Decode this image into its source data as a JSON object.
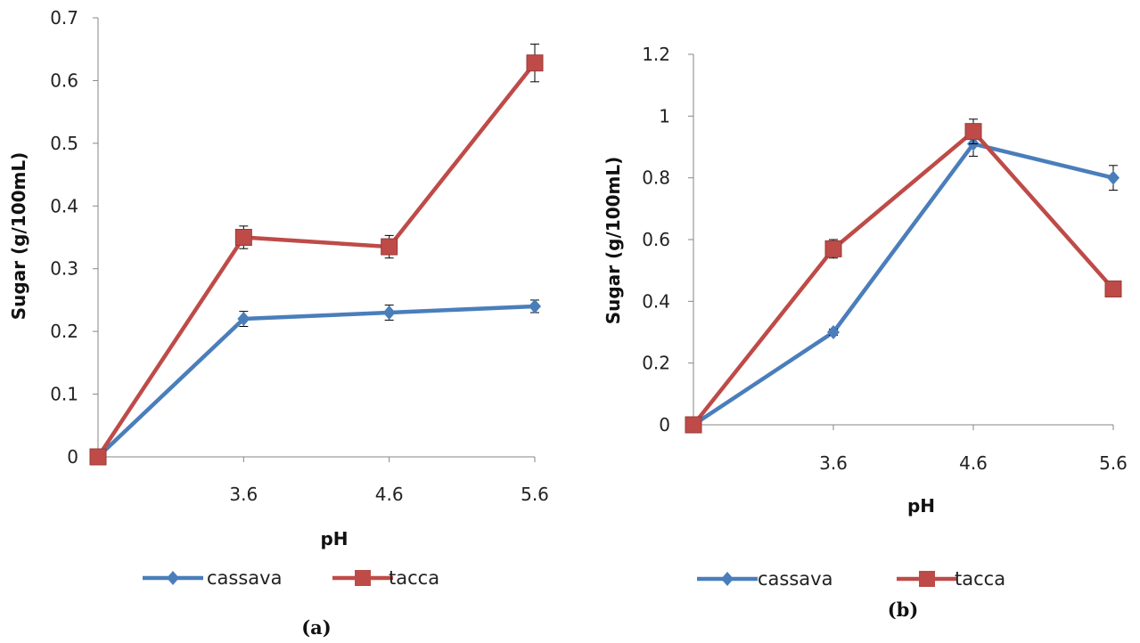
{
  "chart_data": [
    {
      "type": "line",
      "caption": "(a)",
      "xlabel": "pH",
      "ylabel": "Sugar (g/100mL)",
      "categories": [
        "",
        "3.6",
        "4.6",
        "5.6"
      ],
      "ylim": [
        0,
        0.7
      ],
      "yticks": [
        "0",
        "0.1",
        "0.2",
        "0.3",
        "0.4",
        "0.5",
        "0.6",
        "0.7"
      ],
      "legend_position": "bottom",
      "grid": false,
      "error_bars": true,
      "series": [
        {
          "name": "cassava",
          "color": "#4a7ebb",
          "marker": "diamond",
          "values": [
            0.0,
            0.22,
            0.23,
            0.24
          ],
          "errors": [
            0.0,
            0.012,
            0.012,
            0.01
          ]
        },
        {
          "name": "tacca",
          "color": "#be4b48",
          "marker": "square",
          "values": [
            0.0,
            0.35,
            0.335,
            0.628
          ],
          "errors": [
            0.0,
            0.018,
            0.018,
            0.03
          ]
        }
      ]
    },
    {
      "type": "line",
      "caption": "(b)",
      "xlabel": "pH",
      "ylabel": "Sugar (g/100mL)",
      "categories": [
        "",
        "3.6",
        "4.6",
        "5.6"
      ],
      "ylim": [
        0,
        1.2
      ],
      "yticks": [
        "0",
        "0.2",
        "0.4",
        "0.6",
        "0.8",
        "1",
        "1.2"
      ],
      "legend_position": "bottom",
      "grid": false,
      "error_bars": true,
      "series": [
        {
          "name": "cassava",
          "color": "#4a7ebb",
          "marker": "diamond",
          "values": [
            0.0,
            0.3,
            0.91,
            0.8
          ],
          "errors": [
            0.0,
            0.01,
            0.04,
            0.04
          ]
        },
        {
          "name": "tacca",
          "color": "#be4b48",
          "marker": "square",
          "values": [
            0.0,
            0.57,
            0.95,
            0.44
          ],
          "errors": [
            0.0,
            0.03,
            0.04,
            0.01
          ]
        }
      ]
    }
  ]
}
